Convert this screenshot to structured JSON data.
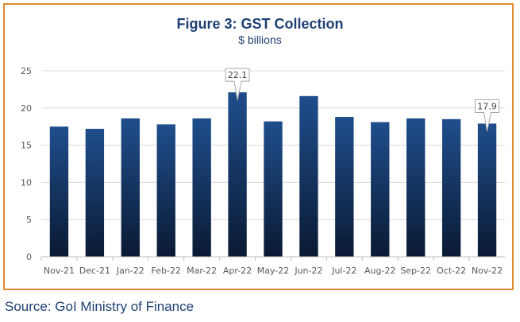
{
  "chart_data": {
    "type": "bar",
    "title": "Figure 3: GST Collection",
    "subtitle": "$ billions",
    "categories": [
      "Nov-21",
      "Dec-21",
      "Jan-22",
      "Feb-22",
      "Mar-22",
      "Apr-22",
      "May-22",
      "Jun-22",
      "Jul-22",
      "Aug-22",
      "Sep-22",
      "Oct-22",
      "Nov-22"
    ],
    "values": [
      17.5,
      17.2,
      18.6,
      17.8,
      18.6,
      22.1,
      18.2,
      21.6,
      18.8,
      18.1,
      18.6,
      18.5,
      17.9
    ],
    "data_labels": [
      {
        "category": "Apr-22",
        "text": "22.1"
      },
      {
        "category": "Nov-22",
        "text": "17.9"
      }
    ],
    "ylim": [
      0,
      25
    ],
    "yticks": [
      0,
      5,
      10,
      15,
      20,
      25
    ],
    "grid": true,
    "bar_color_top": "#1f4e8c",
    "bar_color_bottom": "#0a1a33"
  },
  "source": "Source: GoI Ministry of Finance",
  "colors": {
    "frame": "#e08a2e",
    "title": "#1f3f73",
    "grid": "#d9d9d9"
  }
}
